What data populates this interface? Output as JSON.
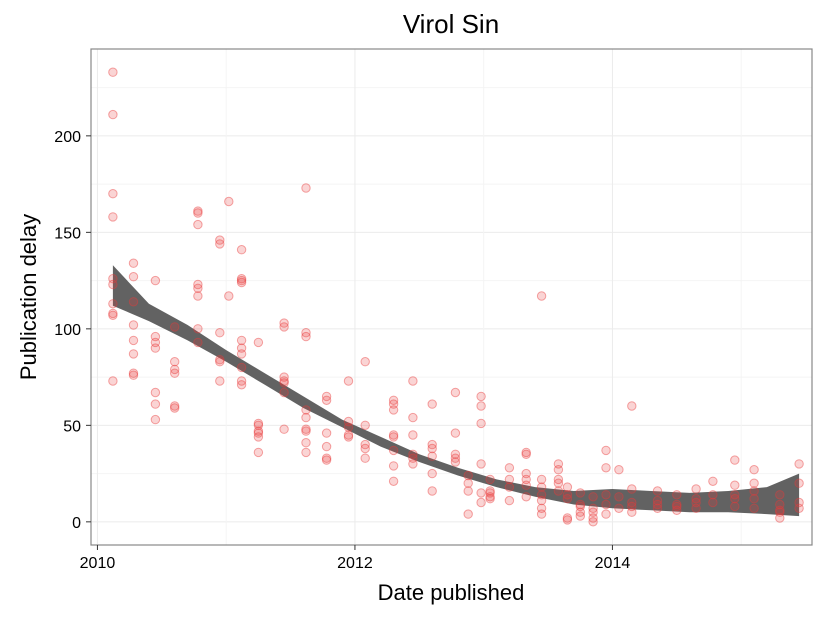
{
  "chart_data": {
    "type": "scatter",
    "title": "Virol Sin",
    "xlabel": "Date published",
    "ylabel": "Publication delay",
    "xlim": [
      2009.95,
      2015.55
    ],
    "ylim": [
      -12,
      245
    ],
    "x_ticks": [
      2010,
      2012,
      2014
    ],
    "x_tick_labels": [
      "2010",
      "2012",
      "2014"
    ],
    "y_ticks": [
      0,
      50,
      100,
      150,
      200
    ],
    "y_tick_labels": [
      "0",
      "50",
      "100",
      "150",
      "200"
    ],
    "grid": true,
    "point_color": "#e8393a",
    "smooth_color": "#5a5a5a",
    "series": [
      {
        "values": [
          [
            2010.12,
            233
          ],
          [
            2010.12,
            211
          ],
          [
            2010.12,
            170
          ],
          [
            2010.12,
            158
          ],
          [
            2010.12,
            126
          ],
          [
            2010.12,
            123
          ],
          [
            2010.12,
            113
          ],
          [
            2010.12,
            108
          ],
          [
            2010.12,
            107
          ],
          [
            2010.12,
            73
          ],
          [
            2010.28,
            134
          ],
          [
            2010.28,
            127
          ],
          [
            2010.28,
            114
          ],
          [
            2010.28,
            102
          ],
          [
            2010.28,
            94
          ],
          [
            2010.28,
            87
          ],
          [
            2010.28,
            77
          ],
          [
            2010.28,
            76
          ],
          [
            2010.45,
            125
          ],
          [
            2010.45,
            96
          ],
          [
            2010.45,
            93
          ],
          [
            2010.45,
            90
          ],
          [
            2010.45,
            67
          ],
          [
            2010.45,
            61
          ],
          [
            2010.45,
            53
          ],
          [
            2010.6,
            101
          ],
          [
            2010.6,
            83
          ],
          [
            2010.6,
            79
          ],
          [
            2010.6,
            77
          ],
          [
            2010.6,
            60
          ],
          [
            2010.6,
            59
          ],
          [
            2010.78,
            161
          ],
          [
            2010.78,
            160
          ],
          [
            2010.78,
            154
          ],
          [
            2010.78,
            123
          ],
          [
            2010.78,
            121
          ],
          [
            2010.78,
            117
          ],
          [
            2010.78,
            100
          ],
          [
            2010.78,
            93
          ],
          [
            2010.95,
            146
          ],
          [
            2010.95,
            144
          ],
          [
            2010.95,
            98
          ],
          [
            2010.95,
            84
          ],
          [
            2010.95,
            83
          ],
          [
            2010.95,
            73
          ],
          [
            2011.02,
            166
          ],
          [
            2011.02,
            117
          ],
          [
            2011.12,
            141
          ],
          [
            2011.12,
            126
          ],
          [
            2011.12,
            125
          ],
          [
            2011.12,
            124
          ],
          [
            2011.12,
            94
          ],
          [
            2011.12,
            90
          ],
          [
            2011.12,
            87
          ],
          [
            2011.12,
            80
          ],
          [
            2011.12,
            73
          ],
          [
            2011.12,
            71
          ],
          [
            2011.25,
            93
          ],
          [
            2011.25,
            51
          ],
          [
            2011.25,
            50
          ],
          [
            2011.25,
            47
          ],
          [
            2011.25,
            46
          ],
          [
            2011.25,
            44
          ],
          [
            2011.25,
            36
          ],
          [
            2011.45,
            103
          ],
          [
            2011.45,
            101
          ],
          [
            2011.45,
            75
          ],
          [
            2011.45,
            73
          ],
          [
            2011.45,
            72
          ],
          [
            2011.45,
            67
          ],
          [
            2011.45,
            48
          ],
          [
            2011.62,
            173
          ],
          [
            2011.62,
            98
          ],
          [
            2011.62,
            96
          ],
          [
            2011.62,
            58
          ],
          [
            2011.62,
            54
          ],
          [
            2011.62,
            48
          ],
          [
            2011.62,
            47
          ],
          [
            2011.62,
            41
          ],
          [
            2011.62,
            36
          ],
          [
            2011.78,
            65
          ],
          [
            2011.78,
            63
          ],
          [
            2011.78,
            46
          ],
          [
            2011.78,
            39
          ],
          [
            2011.78,
            33
          ],
          [
            2011.78,
            32
          ],
          [
            2011.95,
            73
          ],
          [
            2011.95,
            52
          ],
          [
            2011.95,
            49
          ],
          [
            2011.95,
            45
          ],
          [
            2011.95,
            44
          ],
          [
            2012.08,
            83
          ],
          [
            2012.08,
            50
          ],
          [
            2012.08,
            40
          ],
          [
            2012.08,
            38
          ],
          [
            2012.08,
            33
          ],
          [
            2012.3,
            63
          ],
          [
            2012.3,
            61
          ],
          [
            2012.3,
            58
          ],
          [
            2012.3,
            45
          ],
          [
            2012.3,
            44
          ],
          [
            2012.3,
            37
          ],
          [
            2012.3,
            29
          ],
          [
            2012.3,
            21
          ],
          [
            2012.45,
            73
          ],
          [
            2012.45,
            54
          ],
          [
            2012.45,
            45
          ],
          [
            2012.45,
            35
          ],
          [
            2012.45,
            33
          ],
          [
            2012.45,
            30
          ],
          [
            2012.6,
            61
          ],
          [
            2012.6,
            40
          ],
          [
            2012.6,
            38
          ],
          [
            2012.6,
            34
          ],
          [
            2012.6,
            25
          ],
          [
            2012.6,
            16
          ],
          [
            2012.78,
            67
          ],
          [
            2012.78,
            46
          ],
          [
            2012.78,
            35
          ],
          [
            2012.78,
            33
          ],
          [
            2012.78,
            31
          ],
          [
            2012.88,
            24
          ],
          [
            2012.88,
            20
          ],
          [
            2012.88,
            16
          ],
          [
            2012.88,
            4
          ],
          [
            2012.98,
            65
          ],
          [
            2012.98,
            60
          ],
          [
            2012.98,
            51
          ],
          [
            2012.98,
            30
          ],
          [
            2012.98,
            15
          ],
          [
            2012.98,
            10
          ],
          [
            2013.05,
            22
          ],
          [
            2013.05,
            16
          ],
          [
            2013.05,
            15
          ],
          [
            2013.05,
            13
          ],
          [
            2013.05,
            12
          ],
          [
            2013.2,
            28
          ],
          [
            2013.2,
            22
          ],
          [
            2013.2,
            18
          ],
          [
            2013.2,
            11
          ],
          [
            2013.33,
            36
          ],
          [
            2013.33,
            35
          ],
          [
            2013.33,
            25
          ],
          [
            2013.33,
            22
          ],
          [
            2013.33,
            19
          ],
          [
            2013.33,
            13
          ],
          [
            2013.45,
            117
          ],
          [
            2013.45,
            22
          ],
          [
            2013.45,
            18
          ],
          [
            2013.45,
            14
          ],
          [
            2013.45,
            11
          ],
          [
            2013.45,
            7
          ],
          [
            2013.45,
            4
          ],
          [
            2013.58,
            30
          ],
          [
            2013.58,
            27
          ],
          [
            2013.58,
            22
          ],
          [
            2013.58,
            20
          ],
          [
            2013.58,
            16
          ],
          [
            2013.65,
            18
          ],
          [
            2013.65,
            14
          ],
          [
            2013.65,
            12
          ],
          [
            2013.65,
            2
          ],
          [
            2013.65,
            1
          ],
          [
            2013.75,
            15
          ],
          [
            2013.75,
            9
          ],
          [
            2013.75,
            8
          ],
          [
            2013.75,
            5
          ],
          [
            2013.75,
            3
          ],
          [
            2013.85,
            13
          ],
          [
            2013.85,
            7
          ],
          [
            2013.85,
            5
          ],
          [
            2013.85,
            2
          ],
          [
            2013.85,
            0
          ],
          [
            2013.95,
            37
          ],
          [
            2013.95,
            28
          ],
          [
            2013.95,
            14
          ],
          [
            2013.95,
            9
          ],
          [
            2013.95,
            4
          ],
          [
            2014.05,
            27
          ],
          [
            2014.05,
            13
          ],
          [
            2014.05,
            7
          ],
          [
            2014.15,
            60
          ],
          [
            2014.15,
            17
          ],
          [
            2014.15,
            10
          ],
          [
            2014.15,
            8
          ],
          [
            2014.15,
            5
          ],
          [
            2014.35,
            16
          ],
          [
            2014.35,
            11
          ],
          [
            2014.35,
            9
          ],
          [
            2014.35,
            7
          ],
          [
            2014.5,
            14
          ],
          [
            2014.5,
            9
          ],
          [
            2014.5,
            8
          ],
          [
            2014.5,
            6
          ],
          [
            2014.65,
            17
          ],
          [
            2014.65,
            12
          ],
          [
            2014.65,
            10
          ],
          [
            2014.65,
            7
          ],
          [
            2014.78,
            21
          ],
          [
            2014.78,
            14
          ],
          [
            2014.78,
            10
          ],
          [
            2014.95,
            32
          ],
          [
            2014.95,
            19
          ],
          [
            2014.95,
            14
          ],
          [
            2014.95,
            12
          ],
          [
            2014.95,
            8
          ],
          [
            2015.1,
            27
          ],
          [
            2015.1,
            20
          ],
          [
            2015.1,
            16
          ],
          [
            2015.1,
            12
          ],
          [
            2015.1,
            7
          ],
          [
            2015.3,
            14
          ],
          [
            2015.3,
            9
          ],
          [
            2015.3,
            6
          ],
          [
            2015.3,
            5
          ],
          [
            2015.3,
            2
          ],
          [
            2015.45,
            30
          ],
          [
            2015.45,
            20
          ],
          [
            2015.45,
            10
          ],
          [
            2015.45,
            7
          ]
        ]
      }
    ],
    "smooth": {
      "x": [
        2010.12,
        2010.4,
        2010.7,
        2011.0,
        2011.3,
        2011.6,
        2011.9,
        2012.2,
        2012.5,
        2012.8,
        2013.1,
        2013.4,
        2013.7,
        2014.0,
        2014.3,
        2014.6,
        2014.9,
        2015.2,
        2015.45
      ],
      "lower": [
        112,
        104,
        94,
        83,
        71,
        59,
        49,
        39,
        31,
        24,
        18,
        13,
        9,
        7,
        6,
        5,
        5,
        4,
        3
      ],
      "upper": [
        133,
        113,
        102,
        89,
        77,
        65,
        53,
        44,
        35,
        28,
        22,
        18,
        16,
        17,
        16,
        15,
        16,
        18,
        25
      ]
    }
  }
}
